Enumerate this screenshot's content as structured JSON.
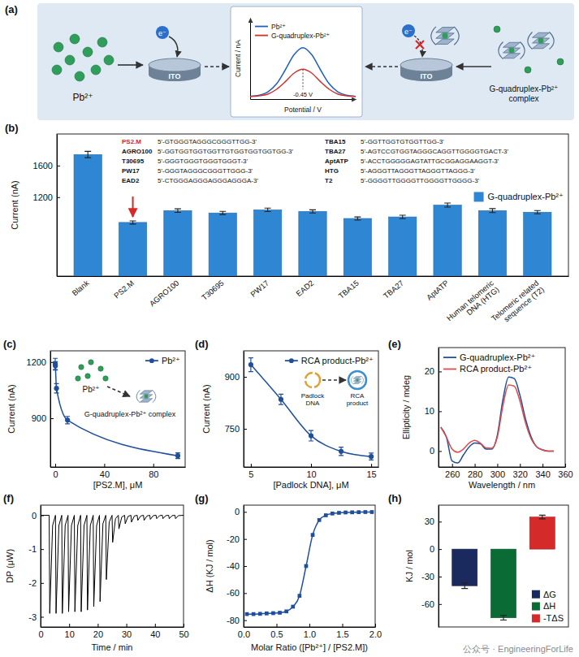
{
  "chart_data": [
    {
      "panel": "(a)",
      "type": "line",
      "x_label": "Potential / V",
      "y_label": "Current / nA",
      "tick_labels": false,
      "x": [
        -0.75,
        -0.7,
        -0.65,
        -0.6,
        -0.55,
        -0.5,
        -0.45,
        -0.4,
        -0.35,
        -0.3,
        -0.25,
        -0.2,
        -0.15
      ],
      "xlim": [
        -0.75,
        -0.15
      ],
      "ylim": [
        0,
        1.5
      ],
      "series": [
        {
          "name": "Pb²⁺",
          "color": "#1f5fbf",
          "values": [
            0.05,
            0.07,
            0.13,
            0.28,
            0.54,
            0.82,
            0.95,
            0.82,
            0.54,
            0.28,
            0.13,
            0.07,
            0.05
          ]
        },
        {
          "name": "G-quadruplex-Pb²⁺",
          "color": "#d0312d",
          "values": [
            0.05,
            0.06,
            0.09,
            0.18,
            0.32,
            0.48,
            0.55,
            0.48,
            0.32,
            0.18,
            0.09,
            0.06,
            0.05
          ]
        }
      ],
      "legend": "upper left",
      "annotations": [
        {
          "text": "-0.45 V",
          "x": -0.45
        }
      ],
      "diagram": {
        "ion_label": "Pb²⁺",
        "electron": "e⁻",
        "electrode": "ITO",
        "complex_label": "G-quadruplex-Pb²⁺ complex"
      }
    },
    {
      "panel": "(b)",
      "type": "bar",
      "y_label": "Current (nA)",
      "categories": [
        "Blank",
        "PS2.M",
        "AGRO100",
        "T30695",
        "PW17",
        "EAD2",
        "TBA15",
        "TBA27",
        "AptATP",
        "Human telomeric DNA (HTG)",
        "Telomeric related sequence (T2)"
      ],
      "series": [
        {
          "name": "G-quadruplex-Pb²⁺",
          "color": "#2f86d3",
          "values": [
            1740,
            880,
            1030,
            1000,
            1040,
            1020,
            930,
            950,
            1100,
            1030,
            1010
          ],
          "errors": [
            40,
            20,
            22,
            20,
            22,
            20,
            20,
            22,
            25,
            25,
            20
          ]
        }
      ],
      "ylim": [
        200,
        2000
      ],
      "yticks": [
        1200,
        1600
      ],
      "legend": "upper right",
      "sequences": [
        {
          "name": "PS2.M",
          "sequence": "5'-GTGGGTAGGGCGGGTTGG-3'",
          "color": "#d62828"
        },
        {
          "name": "AGRO100",
          "sequence": "5'-GGTGGTGGTGGTTGTGGTGGTGGTGG-3'"
        },
        {
          "name": "T30695",
          "sequence": "5'-GGGTGGGTGGGTGGGT-3'"
        },
        {
          "name": "PW17",
          "sequence": "5'-GGGTAGGGCGGGTTGGG-3'"
        },
        {
          "name": "EAD2",
          "sequence": "5'-CTGGGAGGGAGGGAGGGA-3'"
        },
        {
          "name": "TBA15",
          "sequence": "5'-GGTTGGTGTGGTTGG-3'"
        },
        {
          "name": "TBA27",
          "sequence": "5'-AGTCCGTGGTAGGGCAGGTTGGGGTGACT-3'"
        },
        {
          "name": "AptATP",
          "sequence": "5'-ACCTGGGGGAGTATTGCGGAGGAAGGT-3'"
        },
        {
          "name": "HTG",
          "sequence": "5'-AGGGTTAGGGTTAGGGTTAGGG-3'"
        },
        {
          "name": "T2",
          "sequence": "5'-GGGGTTGGGGTTGGGGTTGGGG-3'"
        }
      ]
    },
    {
      "panel": "(c)",
      "type": "line",
      "marker": "circle",
      "x_label": "[PS2.M], μM",
      "y_label": "Current (nA)",
      "x": [
        0,
        0.1,
        1,
        10,
        100
      ],
      "series": [
        {
          "name": "Pb²⁺",
          "color": "#1f4e9c",
          "values": [
            1190,
            1180,
            1060,
            890,
            700
          ],
          "errors": [
            30,
            22,
            25,
            20,
            15
          ]
        }
      ],
      "xlim": [
        -4,
        106
      ],
      "ylim": [
        640,
        1260
      ],
      "xticks": [
        0,
        40,
        80
      ],
      "yticks": [
        900,
        1200
      ],
      "legend": "upper right",
      "annotations": [
        "Pb²⁺",
        "G-quadruplex-Pb²⁺ complex"
      ]
    },
    {
      "panel": "(d)",
      "type": "line",
      "marker": "circle",
      "x_label": "[Padlock DNA], μM",
      "y_label": "Current (nA)",
      "x": [
        5,
        7.5,
        10,
        12.5,
        15
      ],
      "series": [
        {
          "name": "RCA product-Pb²⁺",
          "color": "#1f4e9c",
          "values": [
            935,
            835,
            730,
            685,
            670
          ],
          "errors": [
            20,
            15,
            15,
            12,
            10
          ]
        }
      ],
      "xlim": [
        4.4,
        15.6
      ],
      "ylim": [
        640,
        975
      ],
      "xticks": [
        5,
        10,
        15
      ],
      "yticks": [
        750,
        900
      ],
      "legend": "upper right",
      "annotations": [
        "Padlock DNA",
        "RCA product"
      ]
    },
    {
      "panel": "(e)",
      "type": "line",
      "x_label": "Wavelength / nm",
      "y_label": "Ellipticity / mdeg",
      "x": [
        250,
        255,
        260,
        265,
        270,
        275,
        280,
        285,
        290,
        295,
        300,
        305,
        310,
        315,
        320,
        325,
        330,
        335,
        340,
        345,
        350
      ],
      "series": [
        {
          "name": "G-quadruplex-Pb²⁺",
          "color": "#1f4e9c",
          "values": [
            6,
            3.5,
            -2.5,
            -3,
            -1,
            1,
            2,
            1.8,
            0.5,
            0.5,
            4,
            13,
            18.6,
            18.2,
            14,
            8,
            3.5,
            1,
            0.3,
            0,
            0
          ]
        },
        {
          "name": "RCA product-Pb²⁺",
          "color": "#e04a4a",
          "values": [
            6,
            3.5,
            0.5,
            -0.3,
            0.5,
            2,
            2.7,
            2,
            0.8,
            0.7,
            3.5,
            11.5,
            16.6,
            16.3,
            12.5,
            7,
            3,
            1,
            0.3,
            0,
            0
          ]
        }
      ],
      "xlim": [
        248,
        360
      ],
      "ylim": [
        -4,
        26
      ],
      "xticks": [
        260,
        280,
        300,
        320,
        340,
        360
      ],
      "yticks": [
        0,
        10,
        20
      ],
      "legend": "upper left"
    },
    {
      "panel": "(f)",
      "type": "line",
      "x_label": "Time / min",
      "y_label": "DP (μW)",
      "x": [
        0,
        3,
        3.2,
        4.2,
        5.2,
        5.4,
        6.4,
        7.4,
        7.6,
        8.6,
        9.6,
        9.8,
        10.8,
        11.8,
        12,
        13,
        14,
        14.2,
        15.2,
        16.2,
        16.4,
        17.4,
        18.4,
        18.6,
        19.6,
        20.6,
        20.8,
        21.8,
        22.8,
        23,
        24,
        25,
        25.2,
        26.2,
        27.2,
        27.4,
        28.4,
        29.4,
        29.6,
        30.6,
        31.6,
        31.8,
        32.8,
        33.8,
        34,
        35,
        36,
        36.2,
        37.2,
        38.2,
        38.4,
        39.4,
        40.4,
        40.6,
        41.6,
        42.6,
        42.8,
        43.8,
        44.8,
        45,
        46,
        47,
        47.2,
        48.2,
        50
      ],
      "values": [
        0,
        0,
        -2.9,
        -0.3,
        0,
        -2.9,
        -0.3,
        0,
        -2.9,
        -0.3,
        0,
        -2.85,
        -0.3,
        0,
        -2.85,
        -0.3,
        0,
        -2.85,
        -0.3,
        0,
        -2.8,
        -0.3,
        0,
        -2.7,
        -0.3,
        0,
        -2.55,
        -0.25,
        0,
        -1.9,
        -0.2,
        0,
        -0.8,
        -0.1,
        0,
        -0.4,
        -0.05,
        0,
        -0.25,
        -0.03,
        0,
        -0.2,
        -0.02,
        0,
        -0.15,
        -0.02,
        0,
        -0.15,
        -0.02,
        0,
        -0.12,
        -0.01,
        0,
        -0.1,
        -0.01,
        0,
        -0.1,
        -0.01,
        0,
        -0.1,
        -0.01,
        0,
        -0.1,
        -0.01,
        0
      ],
      "color": "#000000",
      "xlim": [
        0,
        50
      ],
      "ylim": [
        -3.3,
        0.3
      ],
      "xticks": [
        0,
        10,
        20,
        30,
        40,
        50
      ],
      "yticks": [
        -3,
        -2,
        -1,
        0
      ]
    },
    {
      "panel": "(g)",
      "type": "line",
      "marker": "square",
      "x_label": "Molar Ratio ([Pb²⁺] / [PS2.M])",
      "y_label": "ΔH (KJ / mol)",
      "x": [
        0.05,
        0.15,
        0.25,
        0.35,
        0.45,
        0.55,
        0.65,
        0.75,
        0.85,
        0.95,
        1.05,
        1.15,
        1.25,
        1.35,
        1.45,
        1.55,
        1.65,
        1.75,
        1.85,
        1.95
      ],
      "values": [
        -75.5,
        -75.5,
        -75.3,
        -75,
        -74.8,
        -74.5,
        -73.5,
        -70,
        -62,
        -40,
        -17,
        -6,
        -2.5,
        -1.2,
        -0.7,
        -0.4,
        -0.3,
        -0.2,
        -0.1,
        -0.1
      ],
      "color": "#1f4e9c",
      "xlim": [
        0,
        2
      ],
      "ylim": [
        -85,
        5
      ],
      "xticks": [
        {
          "value": 0,
          "label": "0.0"
        },
        0.5,
        {
          "value": 1,
          "label": "1.0"
        },
        1.5,
        {
          "value": 2,
          "label": "2.0"
        }
      ],
      "yticks": [
        -80,
        -60,
        -40,
        -20,
        0
      ]
    },
    {
      "panel": "(h)",
      "type": "bar",
      "y_label": "KJ / mol",
      "categories": [
        "ΔG",
        "ΔH",
        "-TΔS"
      ],
      "values": [
        -40,
        -75,
        35
      ],
      "errors": [
        3,
        2.5,
        2
      ],
      "colors": [
        "#1b2a5e",
        "#0b6b35",
        "#d42a2a"
      ],
      "ylim": [
        -85,
        48
      ],
      "yticks": [
        -60,
        -30,
        0,
        30
      ],
      "legend": "lower right",
      "tick_labels": "y"
    }
  ],
  "watermark": "公众号 · EngineeringForLife"
}
